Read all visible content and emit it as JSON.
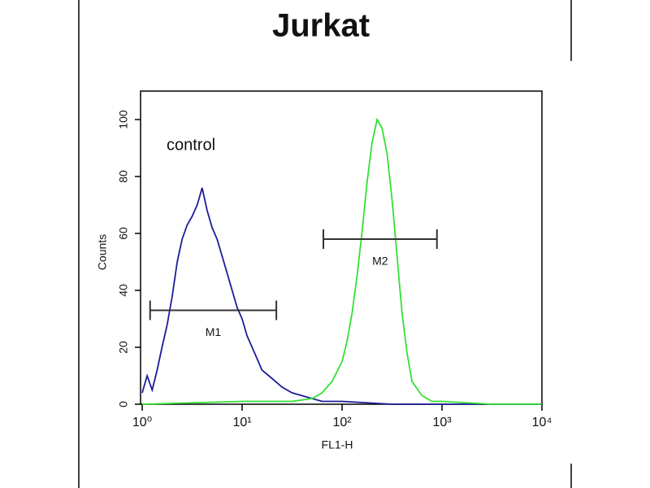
{
  "chart_data": {
    "type": "histogram-overlay",
    "title": "Jurkat",
    "xlabel": "FL1-H",
    "ylabel": "Counts",
    "xscale": "log",
    "xlim": [
      1,
      10000
    ],
    "ylim": [
      0,
      110
    ],
    "xticks": [
      {
        "value": 1,
        "label": "10⁰"
      },
      {
        "value": 10,
        "label": "10¹"
      },
      {
        "value": 100,
        "label": "10²"
      },
      {
        "value": 1000,
        "label": "10³"
      },
      {
        "value": 10000,
        "label": "10⁴"
      }
    ],
    "yticks": [
      0,
      20,
      40,
      60,
      80,
      100
    ],
    "series": [
      {
        "name": "control",
        "color": "#1c1c9a",
        "x": [
          1,
          1.12,
          1.26,
          1.41,
          1.58,
          1.78,
          2,
          2.24,
          2.51,
          2.82,
          3.16,
          3.55,
          3.98,
          4.47,
          5.01,
          5.62,
          6.31,
          7.08,
          7.94,
          8.91,
          10,
          11.2,
          12.6,
          14.1,
          15.8,
          20,
          25.1,
          31.6,
          39.8,
          50.1,
          63.1,
          100,
          316,
          1000,
          10000
        ],
        "values": [
          4,
          10,
          5,
          12,
          20,
          28,
          38,
          50,
          58,
          63,
          66,
          70,
          76,
          68,
          62,
          58,
          52,
          46,
          40,
          34,
          30,
          24,
          20,
          16,
          12,
          9,
          6,
          4,
          3,
          2,
          1,
          1,
          0,
          0,
          0
        ]
      },
      {
        "color": "#33e033",
        "x": [
          1,
          10,
          31.6,
          50.1,
          63.1,
          79.4,
          100,
          112,
          126,
          141,
          158,
          178,
          200,
          224,
          251,
          282,
          316,
          355,
          398,
          447,
          501,
          631,
          794,
          1000,
          3162,
          10000
        ],
        "values": [
          0,
          1,
          1,
          2,
          4,
          8,
          15,
          22,
          32,
          45,
          60,
          78,
          92,
          100,
          97,
          88,
          72,
          52,
          32,
          18,
          8,
          3,
          1,
          1,
          0,
          0
        ]
      }
    ],
    "markers": [
      {
        "label": "M1",
        "x": [
          1.2,
          22
        ],
        "y": 33
      },
      {
        "label": "M2",
        "x": [
          65,
          890
        ],
        "y": 58
      }
    ]
  }
}
